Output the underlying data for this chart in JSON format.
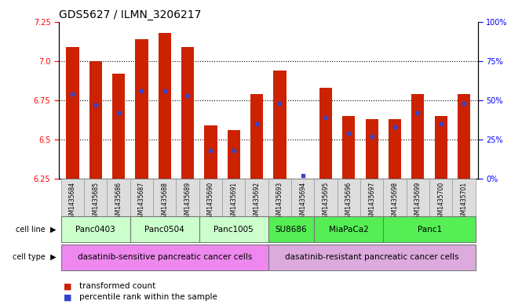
{
  "title": "GDS5627 / ILMN_3206217",
  "samples": [
    "GSM1435684",
    "GSM1435685",
    "GSM1435686",
    "GSM1435687",
    "GSM1435688",
    "GSM1435689",
    "GSM1435690",
    "GSM1435691",
    "GSM1435692",
    "GSM1435693",
    "GSM1435694",
    "GSM1435695",
    "GSM1435696",
    "GSM1435697",
    "GSM1435698",
    "GSM1435699",
    "GSM1435700",
    "GSM1435701"
  ],
  "red_values": [
    7.09,
    7.0,
    6.92,
    7.14,
    7.18,
    7.09,
    6.59,
    6.56,
    6.79,
    6.94,
    6.25,
    6.83,
    6.65,
    6.63,
    6.63,
    6.79,
    6.65,
    6.79
  ],
  "blue_values": [
    6.79,
    6.72,
    6.67,
    6.81,
    6.81,
    6.78,
    6.43,
    6.43,
    6.6,
    6.73,
    6.27,
    6.64,
    6.54,
    6.52,
    6.58,
    6.67,
    6.6,
    6.73
  ],
  "ylim": [
    6.25,
    7.25
  ],
  "yticks_left": [
    6.25,
    6.5,
    6.75,
    7.0,
    7.25
  ],
  "yticks_right": [
    0,
    25,
    50,
    75,
    100
  ],
  "ytick_right_labels": [
    "0%",
    "25%",
    "50%",
    "75%",
    "100%"
  ],
  "bar_color": "#cc2200",
  "blue_color": "#3344cc",
  "cell_lines": [
    {
      "name": "Panc0403",
      "start": 0,
      "end": 2,
      "color": "#ccffcc"
    },
    {
      "name": "Panc0504",
      "start": 3,
      "end": 5,
      "color": "#ccffcc"
    },
    {
      "name": "Panc1005",
      "start": 6,
      "end": 8,
      "color": "#ccffcc"
    },
    {
      "name": "SU8686",
      "start": 9,
      "end": 10,
      "color": "#55ee55"
    },
    {
      "name": "MiaPaCa2",
      "start": 11,
      "end": 13,
      "color": "#55ee55"
    },
    {
      "name": "Panc1",
      "start": 14,
      "end": 17,
      "color": "#55ee55"
    }
  ],
  "cell_types": [
    {
      "name": "dasatinib-sensitive pancreatic cancer cells",
      "start": 0,
      "end": 8,
      "color": "#ee88ee"
    },
    {
      "name": "dasatinib-resistant pancreatic cancer cells",
      "start": 9,
      "end": 17,
      "color": "#ddaadd"
    }
  ],
  "legend_items": [
    {
      "label": "transformed count",
      "color": "#cc2200"
    },
    {
      "label": "percentile rank within the sample",
      "color": "#3344cc"
    }
  ],
  "bar_width": 0.55,
  "tick_fontsize": 7,
  "title_fontsize": 10
}
